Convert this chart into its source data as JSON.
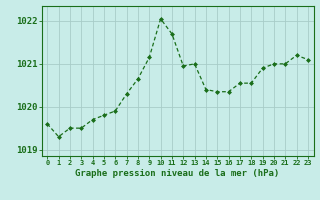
{
  "x": [
    0,
    1,
    2,
    3,
    4,
    5,
    6,
    7,
    8,
    9,
    10,
    11,
    12,
    13,
    14,
    15,
    16,
    17,
    18,
    19,
    20,
    21,
    22,
    23
  ],
  "y": [
    1019.6,
    1019.3,
    1019.5,
    1019.5,
    1019.7,
    1019.8,
    1019.9,
    1020.3,
    1020.65,
    1021.15,
    1022.05,
    1021.7,
    1020.95,
    1021.0,
    1020.4,
    1020.35,
    1020.35,
    1020.55,
    1020.55,
    1020.9,
    1021.0,
    1021.0,
    1021.2,
    1021.1
  ],
  "line_color": "#1a6e1a",
  "marker": "D",
  "marker_size": 2.0,
  "bg_color": "#c8ece8",
  "grid_color": "#a8ccc8",
  "xlabel": "Graphe pression niveau de la mer (hPa)",
  "tick_color": "#1a6e1a",
  "spine_color": "#1a6e1a",
  "yticks": [
    1019,
    1020,
    1021,
    1022
  ],
  "xticks": [
    0,
    1,
    2,
    3,
    4,
    5,
    6,
    7,
    8,
    9,
    10,
    11,
    12,
    13,
    14,
    15,
    16,
    17,
    18,
    19,
    20,
    21,
    22,
    23
  ],
  "ylim": [
    1018.85,
    1022.35
  ],
  "xlim": [
    -0.5,
    23.5
  ]
}
